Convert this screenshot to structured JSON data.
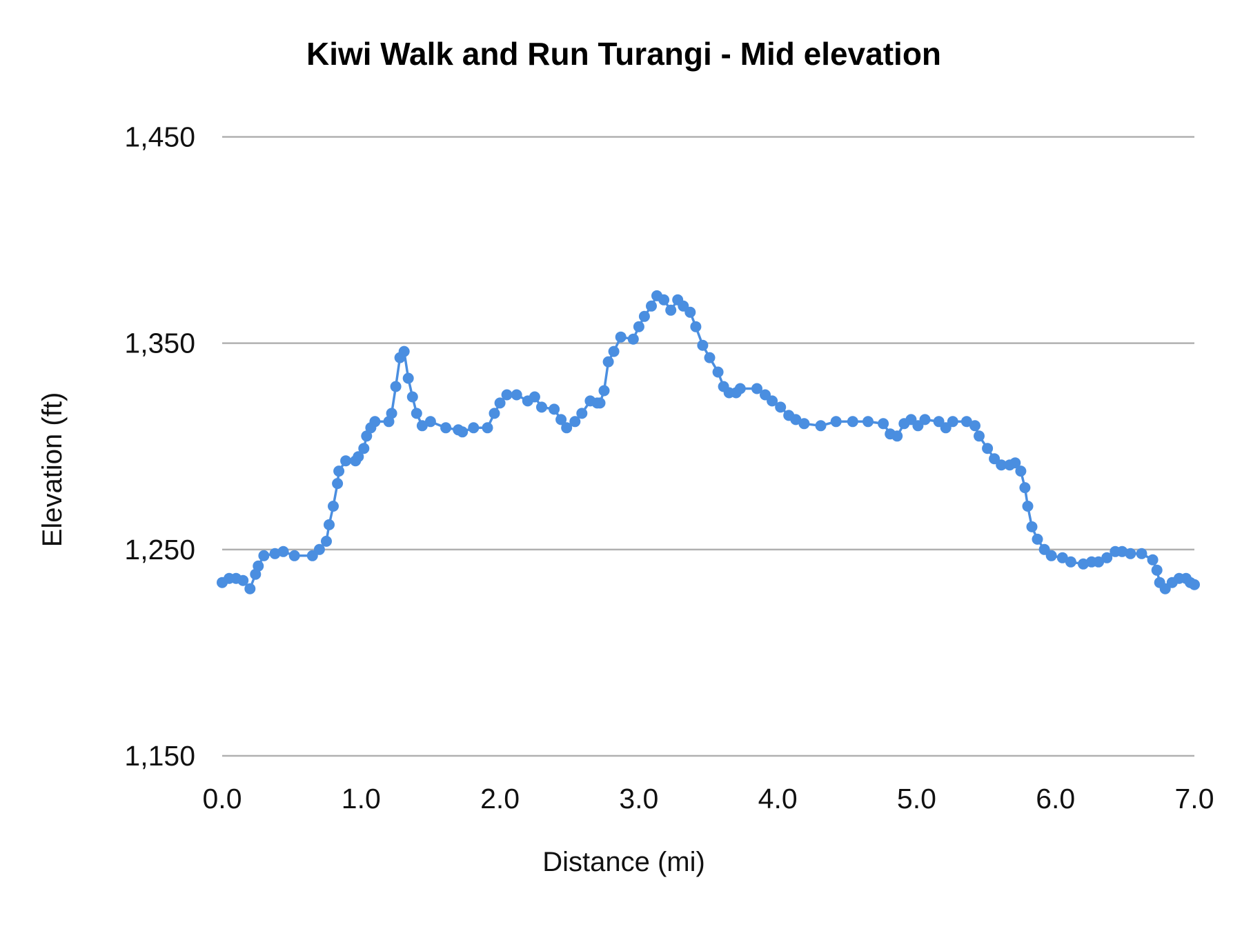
{
  "chart_data": {
    "type": "line",
    "title": "Kiwi Walk and Run Turangi - Mid elevation",
    "xlabel": "Distance (mi)",
    "ylabel": "Elevation (ft)",
    "xlim": [
      0,
      7
    ],
    "ylim": [
      1150,
      1450
    ],
    "x_ticks": [
      "0.0",
      "1.0",
      "2.0",
      "3.0",
      "4.0",
      "5.0",
      "6.0",
      "7.0"
    ],
    "y_ticks": [
      "1,150",
      "1,250",
      "1,350",
      "1,450"
    ],
    "grid": "horizontal",
    "legend": "none",
    "markers": true,
    "color": "#4a8ee0",
    "x": [
      0.0,
      0.05,
      0.1,
      0.15,
      0.2,
      0.24,
      0.26,
      0.3,
      0.38,
      0.44,
      0.52,
      0.65,
      0.7,
      0.75,
      0.77,
      0.8,
      0.83,
      0.84,
      0.89,
      0.96,
      0.98,
      1.02,
      1.04,
      1.07,
      1.1,
      1.2,
      1.22,
      1.25,
      1.28,
      1.31,
      1.34,
      1.37,
      1.4,
      1.44,
      1.5,
      1.61,
      1.7,
      1.73,
      1.81,
      1.91,
      1.96,
      2.0,
      2.05,
      2.12,
      2.2,
      2.25,
      2.3,
      2.39,
      2.44,
      2.48,
      2.54,
      2.59,
      2.65,
      2.7,
      2.72,
      2.75,
      2.78,
      2.82,
      2.87,
      2.96,
      3.0,
      3.04,
      3.09,
      3.13,
      3.18,
      3.23,
      3.28,
      3.32,
      3.37,
      3.41,
      3.46,
      3.51,
      3.57,
      3.61,
      3.65,
      3.7,
      3.73,
      3.85,
      3.91,
      3.96,
      4.02,
      4.08,
      4.13,
      4.19,
      4.31,
      4.42,
      4.54,
      4.65,
      4.76,
      4.81,
      4.86,
      4.91,
      4.96,
      5.01,
      5.06,
      5.16,
      5.21,
      5.26,
      5.36,
      5.42,
      5.45,
      5.51,
      5.56,
      5.61,
      5.67,
      5.71,
      5.75,
      5.78,
      5.8,
      5.83,
      5.87,
      5.92,
      5.97,
      6.05,
      6.11,
      6.2,
      6.26,
      6.31,
      6.37,
      6.43,
      6.48,
      6.54,
      6.62,
      6.7,
      6.73,
      6.75,
      6.79,
      6.84,
      6.89,
      6.94,
      6.97,
      7.0
    ],
    "y": [
      1234,
      1236,
      1236,
      1235,
      1231,
      1238,
      1242,
      1247,
      1248,
      1249,
      1247,
      1247,
      1250,
      1254,
      1262,
      1271,
      1282,
      1288,
      1293,
      1293,
      1295,
      1299,
      1305,
      1309,
      1312,
      1312,
      1316,
      1329,
      1343,
      1346,
      1333,
      1324,
      1316,
      1310,
      1312,
      1309,
      1308,
      1307,
      1309,
      1309,
      1316,
      1321,
      1325,
      1325,
      1322,
      1324,
      1319,
      1318,
      1313,
      1309,
      1312,
      1316,
      1322,
      1321,
      1321,
      1327,
      1341,
      1346,
      1353,
      1352,
      1358,
      1363,
      1368,
      1373,
      1371,
      1366,
      1371,
      1368,
      1365,
      1358,
      1349,
      1343,
      1336,
      1329,
      1326,
      1326,
      1328,
      1328,
      1325,
      1322,
      1319,
      1315,
      1313,
      1311,
      1310,
      1312,
      1312,
      1312,
      1311,
      1306,
      1305,
      1311,
      1313,
      1310,
      1313,
      1312,
      1309,
      1312,
      1312,
      1310,
      1305,
      1299,
      1294,
      1291,
      1291,
      1292,
      1288,
      1280,
      1271,
      1261,
      1255,
      1250,
      1247,
      1246,
      1244,
      1243,
      1244,
      1244,
      1246,
      1249,
      1249,
      1248,
      1248,
      1245,
      1240,
      1234,
      1231,
      1234,
      1236,
      1236,
      1234,
      1233
    ]
  }
}
